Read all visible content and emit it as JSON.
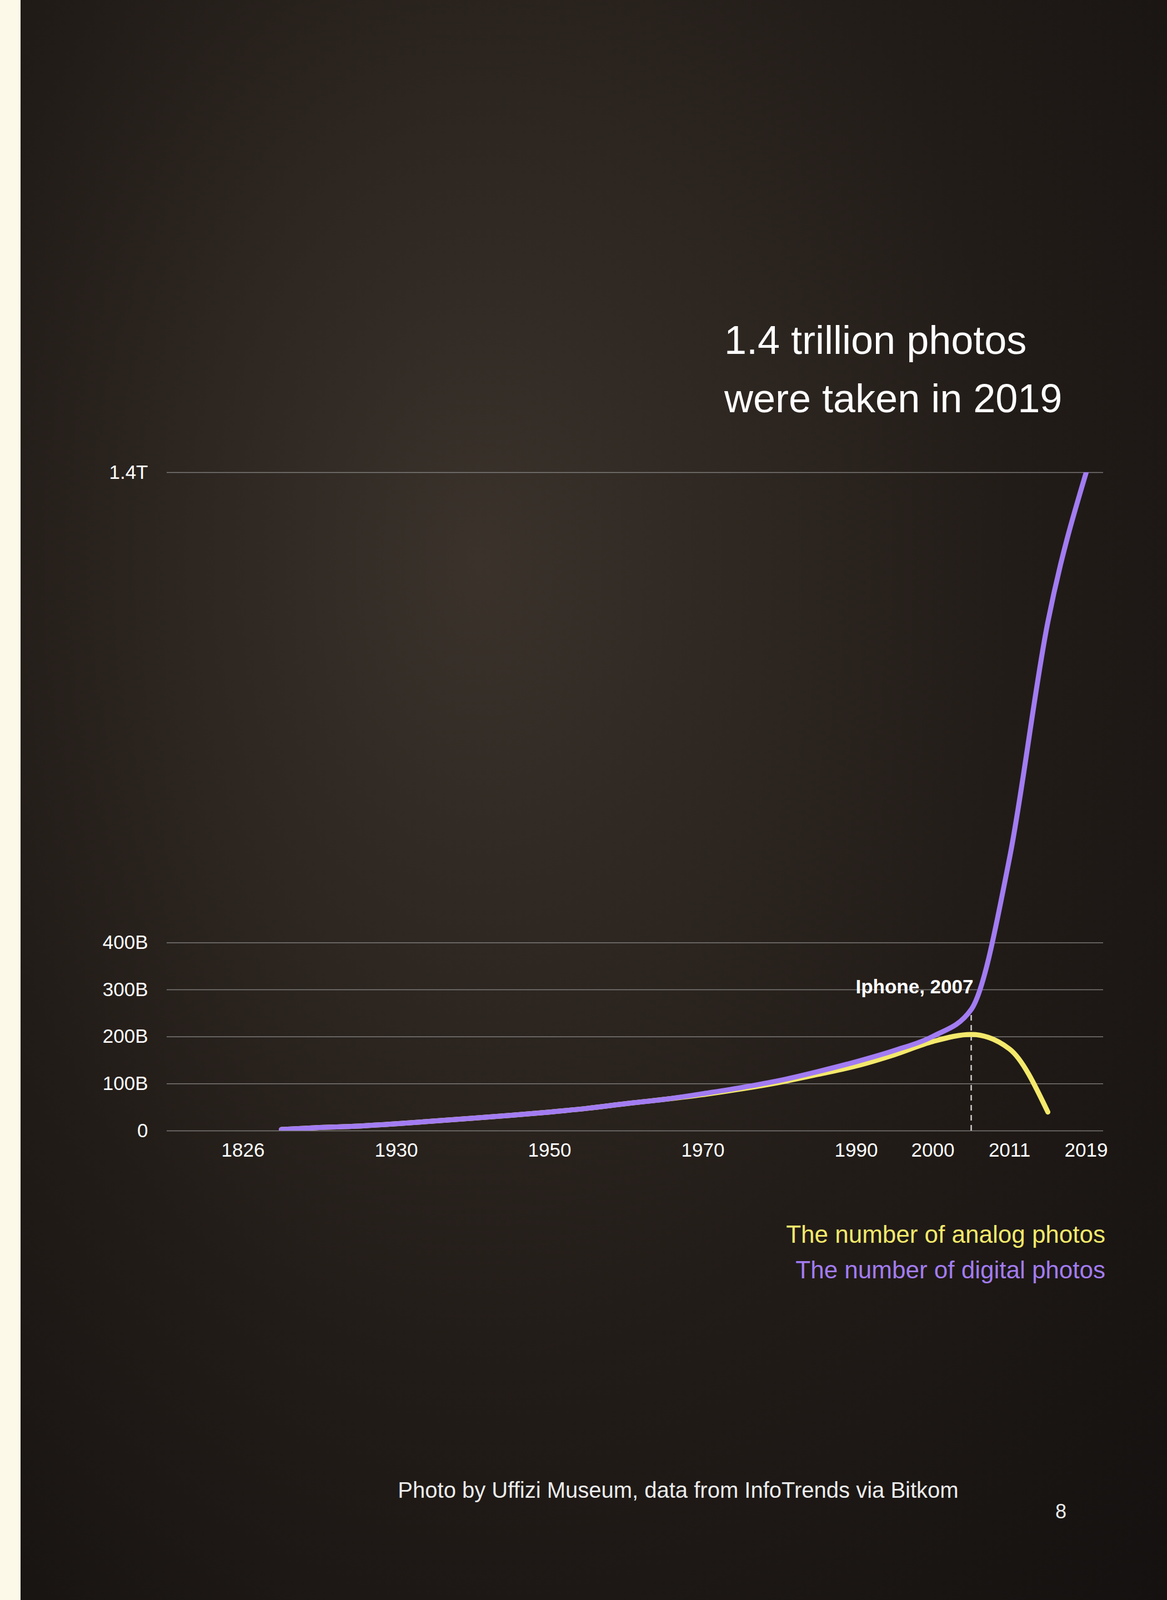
{
  "chart_data": {
    "type": "line",
    "title": "1.4 trillion photos were taken in 2019",
    "categories": [
      "1826",
      null,
      null,
      null,
      "1930",
      null,
      null,
      null,
      "1950",
      null,
      null,
      null,
      "1970",
      null,
      null,
      null,
      "1990",
      null,
      "2000",
      null,
      "2011",
      null,
      "2019"
    ],
    "series": [
      {
        "name": "The number of analog photos",
        "color": "#f4e96b",
        "values": [
          null,
          3,
          7,
          10,
          15,
          21,
          27,
          33,
          40,
          48,
          58,
          67,
          77,
          89,
          103,
          120,
          138,
          162,
          190,
          205,
          174,
          40,
          null
        ]
      },
      {
        "name": "The number of digital photos",
        "color": "#a27cf2",
        "values": [
          null,
          3,
          7,
          10,
          15,
          21,
          27,
          33,
          40,
          48,
          58,
          67,
          79,
          92,
          107,
          126,
          147,
          171,
          201,
          258,
          580,
          1082,
          1400
        ]
      }
    ],
    "ylim": [
      0,
      1400
    ],
    "yticks": [
      0,
      {
        "value": 100,
        "label": "100B"
      },
      {
        "value": 200,
        "label": "200B"
      },
      {
        "value": 300,
        "label": "300B"
      },
      {
        "value": 400,
        "label": "400B"
      },
      {
        "value": 1400,
        "label": "1.4T"
      }
    ],
    "grid": true,
    "legend": "bottom-right",
    "annotations": [
      {
        "text": "Iphone, 2007",
        "index": 19
      }
    ],
    "caption": "Photo by Uffizi Museum, data from InfoTrends via Bitkom",
    "page": "8"
  }
}
